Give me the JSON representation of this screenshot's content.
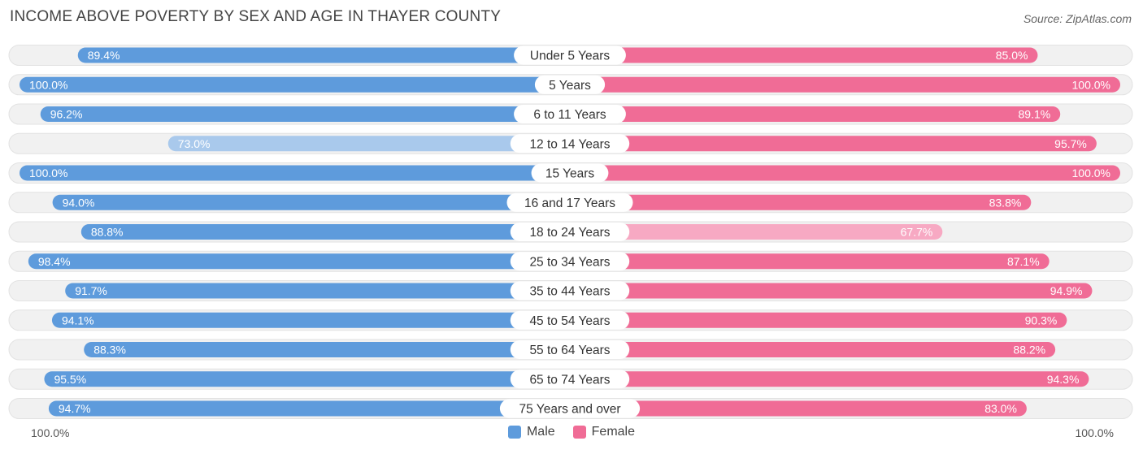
{
  "title": "INCOME ABOVE POVERTY BY SEX AND AGE IN THAYER COUNTY",
  "source": "Source: ZipAtlas.com",
  "axis": {
    "left_label": "100.0%",
    "right_label": "100.0%"
  },
  "legend": {
    "male": "Male",
    "female": "Female"
  },
  "colors": {
    "male": "#5e9bdc",
    "male_light": "#a9c9ec",
    "female": "#f06c96",
    "female_light": "#f7a9c3",
    "track": "#f1f1f1"
  },
  "chart_data": {
    "type": "bar",
    "orientation": "horizontal-diverging",
    "xlim": [
      0,
      100
    ],
    "categories": [
      "Under 5 Years",
      "5 Years",
      "6 to 11 Years",
      "12 to 14 Years",
      "15 Years",
      "16 and 17 Years",
      "18 to 24 Years",
      "25 to 34 Years",
      "35 to 44 Years",
      "45 to 54 Years",
      "55 to 64 Years",
      "65 to 74 Years",
      "75 Years and over"
    ],
    "series": [
      {
        "name": "Male",
        "values": [
          89.4,
          100.0,
          96.2,
          73.0,
          100.0,
          94.0,
          88.8,
          98.4,
          91.7,
          94.1,
          88.3,
          95.5,
          94.7
        ],
        "labels": [
          "89.4%",
          "100.0%",
          "96.2%",
          "73.0%",
          "100.0%",
          "94.0%",
          "88.8%",
          "98.4%",
          "91.7%",
          "94.1%",
          "88.3%",
          "95.5%",
          "94.7%"
        ]
      },
      {
        "name": "Female",
        "values": [
          85.0,
          100.0,
          89.1,
          95.7,
          100.0,
          83.8,
          67.7,
          87.1,
          94.9,
          90.3,
          88.2,
          94.3,
          83.0
        ],
        "labels": [
          "85.0%",
          "100.0%",
          "89.1%",
          "95.7%",
          "100.0%",
          "83.8%",
          "67.7%",
          "87.1%",
          "94.9%",
          "90.3%",
          "88.2%",
          "94.3%",
          "83.0%"
        ]
      }
    ]
  }
}
